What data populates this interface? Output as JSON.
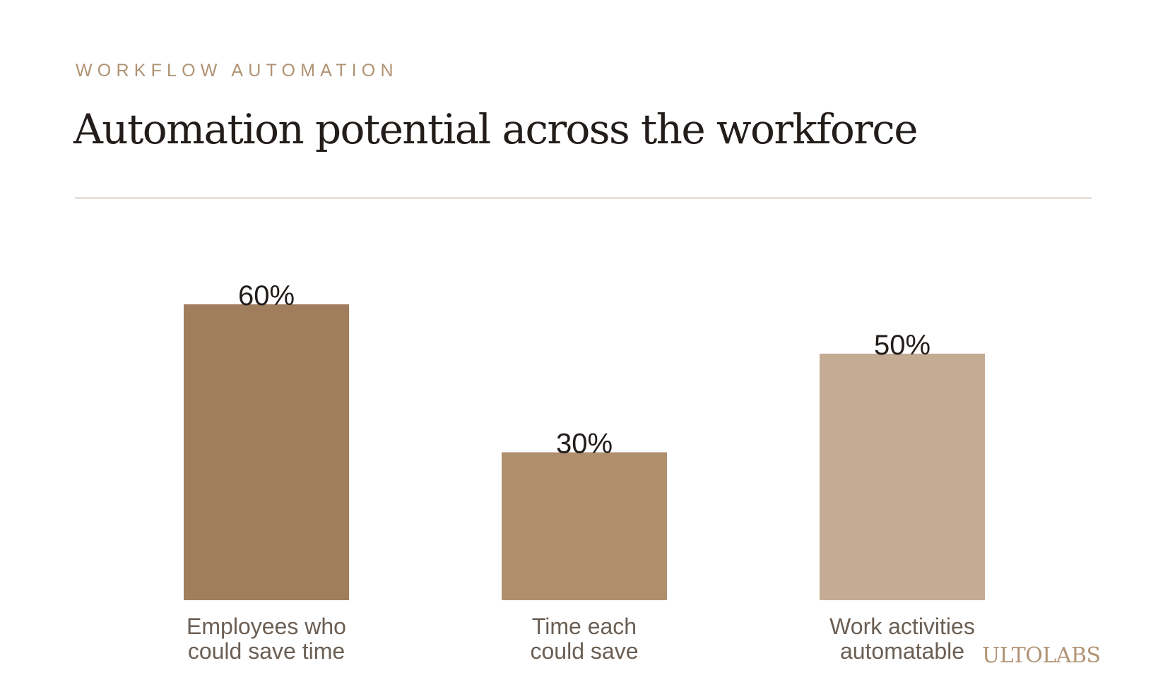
{
  "header": {
    "eyebrow": "WORKFLOW AUTOMATION",
    "title": "Automation potential across the workforce"
  },
  "brand": {
    "logo_text": "ULTOLABS"
  },
  "colors": {
    "accent": "#b09373",
    "title": "#221d1a",
    "label": "#6b5e53",
    "divider": "#e8e2dc"
  },
  "chart_data": {
    "type": "bar",
    "title": "Automation potential across the workforce",
    "xlabel": "",
    "ylabel": "",
    "ylim": [
      0,
      60
    ],
    "grid": false,
    "legend": "none",
    "categories": [
      [
        "Employees who",
        "could save time"
      ],
      [
        "Time each",
        "could save"
      ],
      [
        "Work activities",
        "automatable"
      ]
    ],
    "values": [
      60,
      30,
      50
    ],
    "value_labels": [
      "60%",
      "30%",
      "50%"
    ],
    "bar_colors": [
      "#a07d5c",
      "#b08f6f",
      "#c4ab93"
    ]
  }
}
